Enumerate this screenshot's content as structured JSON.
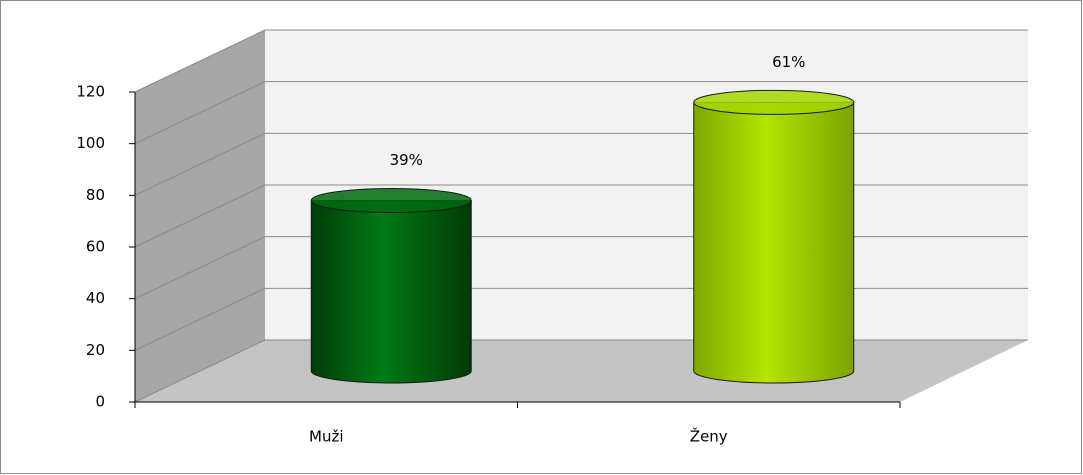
{
  "chart_data": {
    "type": "cylinder",
    "categories": [
      "Muži",
      "Ženy"
    ],
    "values": [
      66,
      104
    ],
    "annotations": [
      "39%",
      "61%"
    ],
    "colors": [
      "#006a10",
      "#a6d600"
    ],
    "ylim": [
      0,
      120
    ],
    "yticks": [
      0,
      20,
      40,
      60,
      80,
      100,
      120
    ],
    "grid": true
  }
}
